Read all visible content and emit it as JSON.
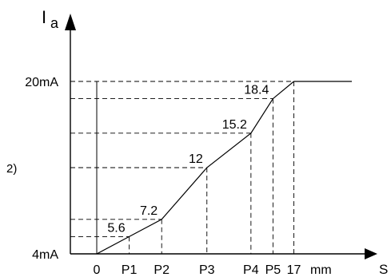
{
  "chart_data": {
    "type": "line",
    "y_axis_label_main": "I",
    "y_axis_label_sub": "a",
    "x_axis_label": "S",
    "x_unit": "mm",
    "side_label": "2)",
    "y_ticks": [
      {
        "value": 4,
        "label": "4mA"
      },
      {
        "value": 20,
        "label": "20mA"
      }
    ],
    "x_ticks": [
      {
        "value": 0,
        "label": "0"
      },
      {
        "value": 2.8,
        "label": "P1"
      },
      {
        "value": 5.6,
        "label": "P2"
      },
      {
        "value": 9.5,
        "label": "P3"
      },
      {
        "value": 13.3,
        "label": "P4"
      },
      {
        "value": 15.2,
        "label": "P5"
      },
      {
        "value": 17,
        "label": "17"
      }
    ],
    "points": [
      {
        "x": 0,
        "y": 4,
        "label": ""
      },
      {
        "x": 2.8,
        "y": 5.6,
        "label": "5.6"
      },
      {
        "x": 5.6,
        "y": 7.2,
        "label": "7.2"
      },
      {
        "x": 9.5,
        "y": 12,
        "label": "12"
      },
      {
        "x": 13.3,
        "y": 15.2,
        "label": "15.2"
      },
      {
        "x": 15.2,
        "y": 18.4,
        "label": "18.4"
      },
      {
        "x": 17,
        "y": 20,
        "label": ""
      }
    ],
    "line_extension_to_x": 22,
    "xlim": [
      -1,
      27
    ],
    "ylim": [
      2.9,
      26
    ]
  }
}
